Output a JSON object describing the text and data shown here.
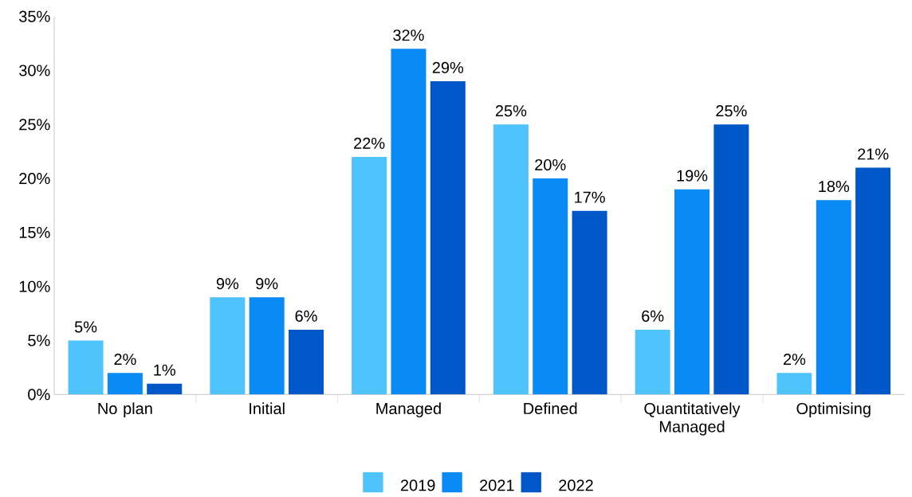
{
  "chart_data": {
    "type": "bar",
    "categories": [
      "No plan",
      "Initial",
      "Managed",
      "Defined",
      "Quantitatively Managed",
      "Optimising"
    ],
    "series": [
      {
        "name": "2019",
        "color": "#4fc3fc",
        "values": [
          5,
          9,
          22,
          25,
          6,
          2
        ],
        "value_labels": [
          "5%",
          "9%",
          "22%",
          "25%",
          "6%",
          "2%"
        ]
      },
      {
        "name": "2021",
        "color": "#0a8af5",
        "values": [
          2,
          9,
          32,
          20,
          19,
          18
        ],
        "value_labels": [
          "2%",
          "9%",
          "32%",
          "20%",
          "19%",
          "18%"
        ]
      },
      {
        "name": "2022",
        "color": "#0058c8",
        "values": [
          1,
          6,
          29,
          17,
          25,
          21
        ],
        "value_labels": [
          "1%",
          "6%",
          "29%",
          "17%",
          "25%",
          "21%"
        ]
      }
    ],
    "ylim": [
      0,
      35
    ],
    "yticks": [
      {
        "value": 0,
        "label": "0%"
      },
      {
        "value": 5,
        "label": "5%"
      },
      {
        "value": 10,
        "label": "10%"
      },
      {
        "value": 15,
        "label": "15%"
      },
      {
        "value": 20,
        "label": "20%"
      },
      {
        "value": 25,
        "label": "25%"
      },
      {
        "value": 30,
        "label": "30%"
      },
      {
        "value": 35,
        "label": "35%"
      }
    ],
    "grid": false,
    "legend": "bottom"
  }
}
